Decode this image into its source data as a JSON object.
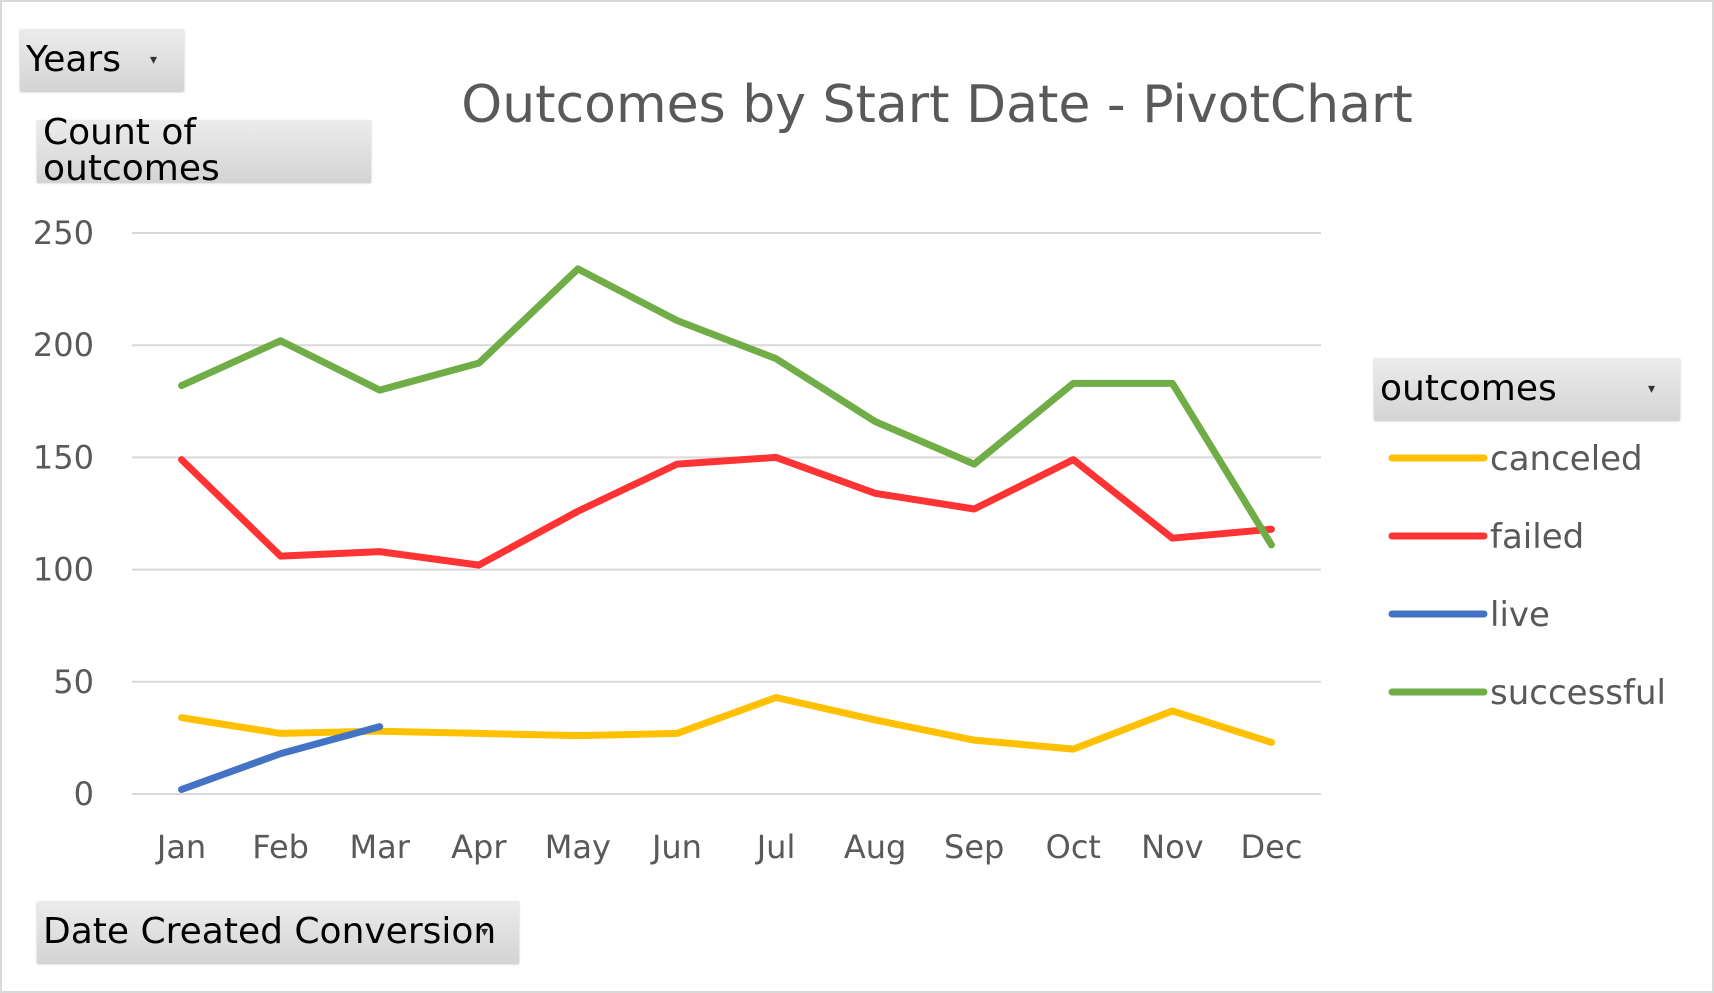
{
  "filters": {
    "years_label": "Years",
    "value_field_label": "Count of outcomes",
    "axis_field_label": "Date Created Conversion",
    "legend_field_label": "outcomes",
    "dropdown_icon": "chevron-down-icon"
  },
  "chart_data": {
    "type": "line",
    "title": "Outcomes by Start Date - PivotChart",
    "xlabel": "",
    "ylabel": "",
    "categories": [
      "Jan",
      "Feb",
      "Mar",
      "Apr",
      "May",
      "Jun",
      "Jul",
      "Aug",
      "Sep",
      "Oct",
      "Nov",
      "Dec"
    ],
    "ylim": [
      0,
      250
    ],
    "yticks": [
      0,
      50,
      100,
      150,
      200,
      250
    ],
    "grid": true,
    "legend_position": "right",
    "series": [
      {
        "name": "canceled",
        "color": "#FFC000",
        "values": [
          34,
          27,
          28,
          27,
          26,
          27,
          43,
          33,
          24,
          20,
          37,
          23
        ]
      },
      {
        "name": "failed",
        "color": "#FF3333",
        "values": [
          149,
          106,
          108,
          102,
          126,
          147,
          150,
          134,
          127,
          149,
          114,
          118
        ]
      },
      {
        "name": "live",
        "color": "#4472C4",
        "values": [
          2,
          18,
          30,
          null,
          null,
          null,
          null,
          null,
          null,
          null,
          null,
          null
        ]
      },
      {
        "name": "successful",
        "color": "#70AD47",
        "values": [
          182,
          202,
          180,
          192,
          234,
          211,
          194,
          166,
          147,
          183,
          183,
          111
        ]
      }
    ]
  }
}
